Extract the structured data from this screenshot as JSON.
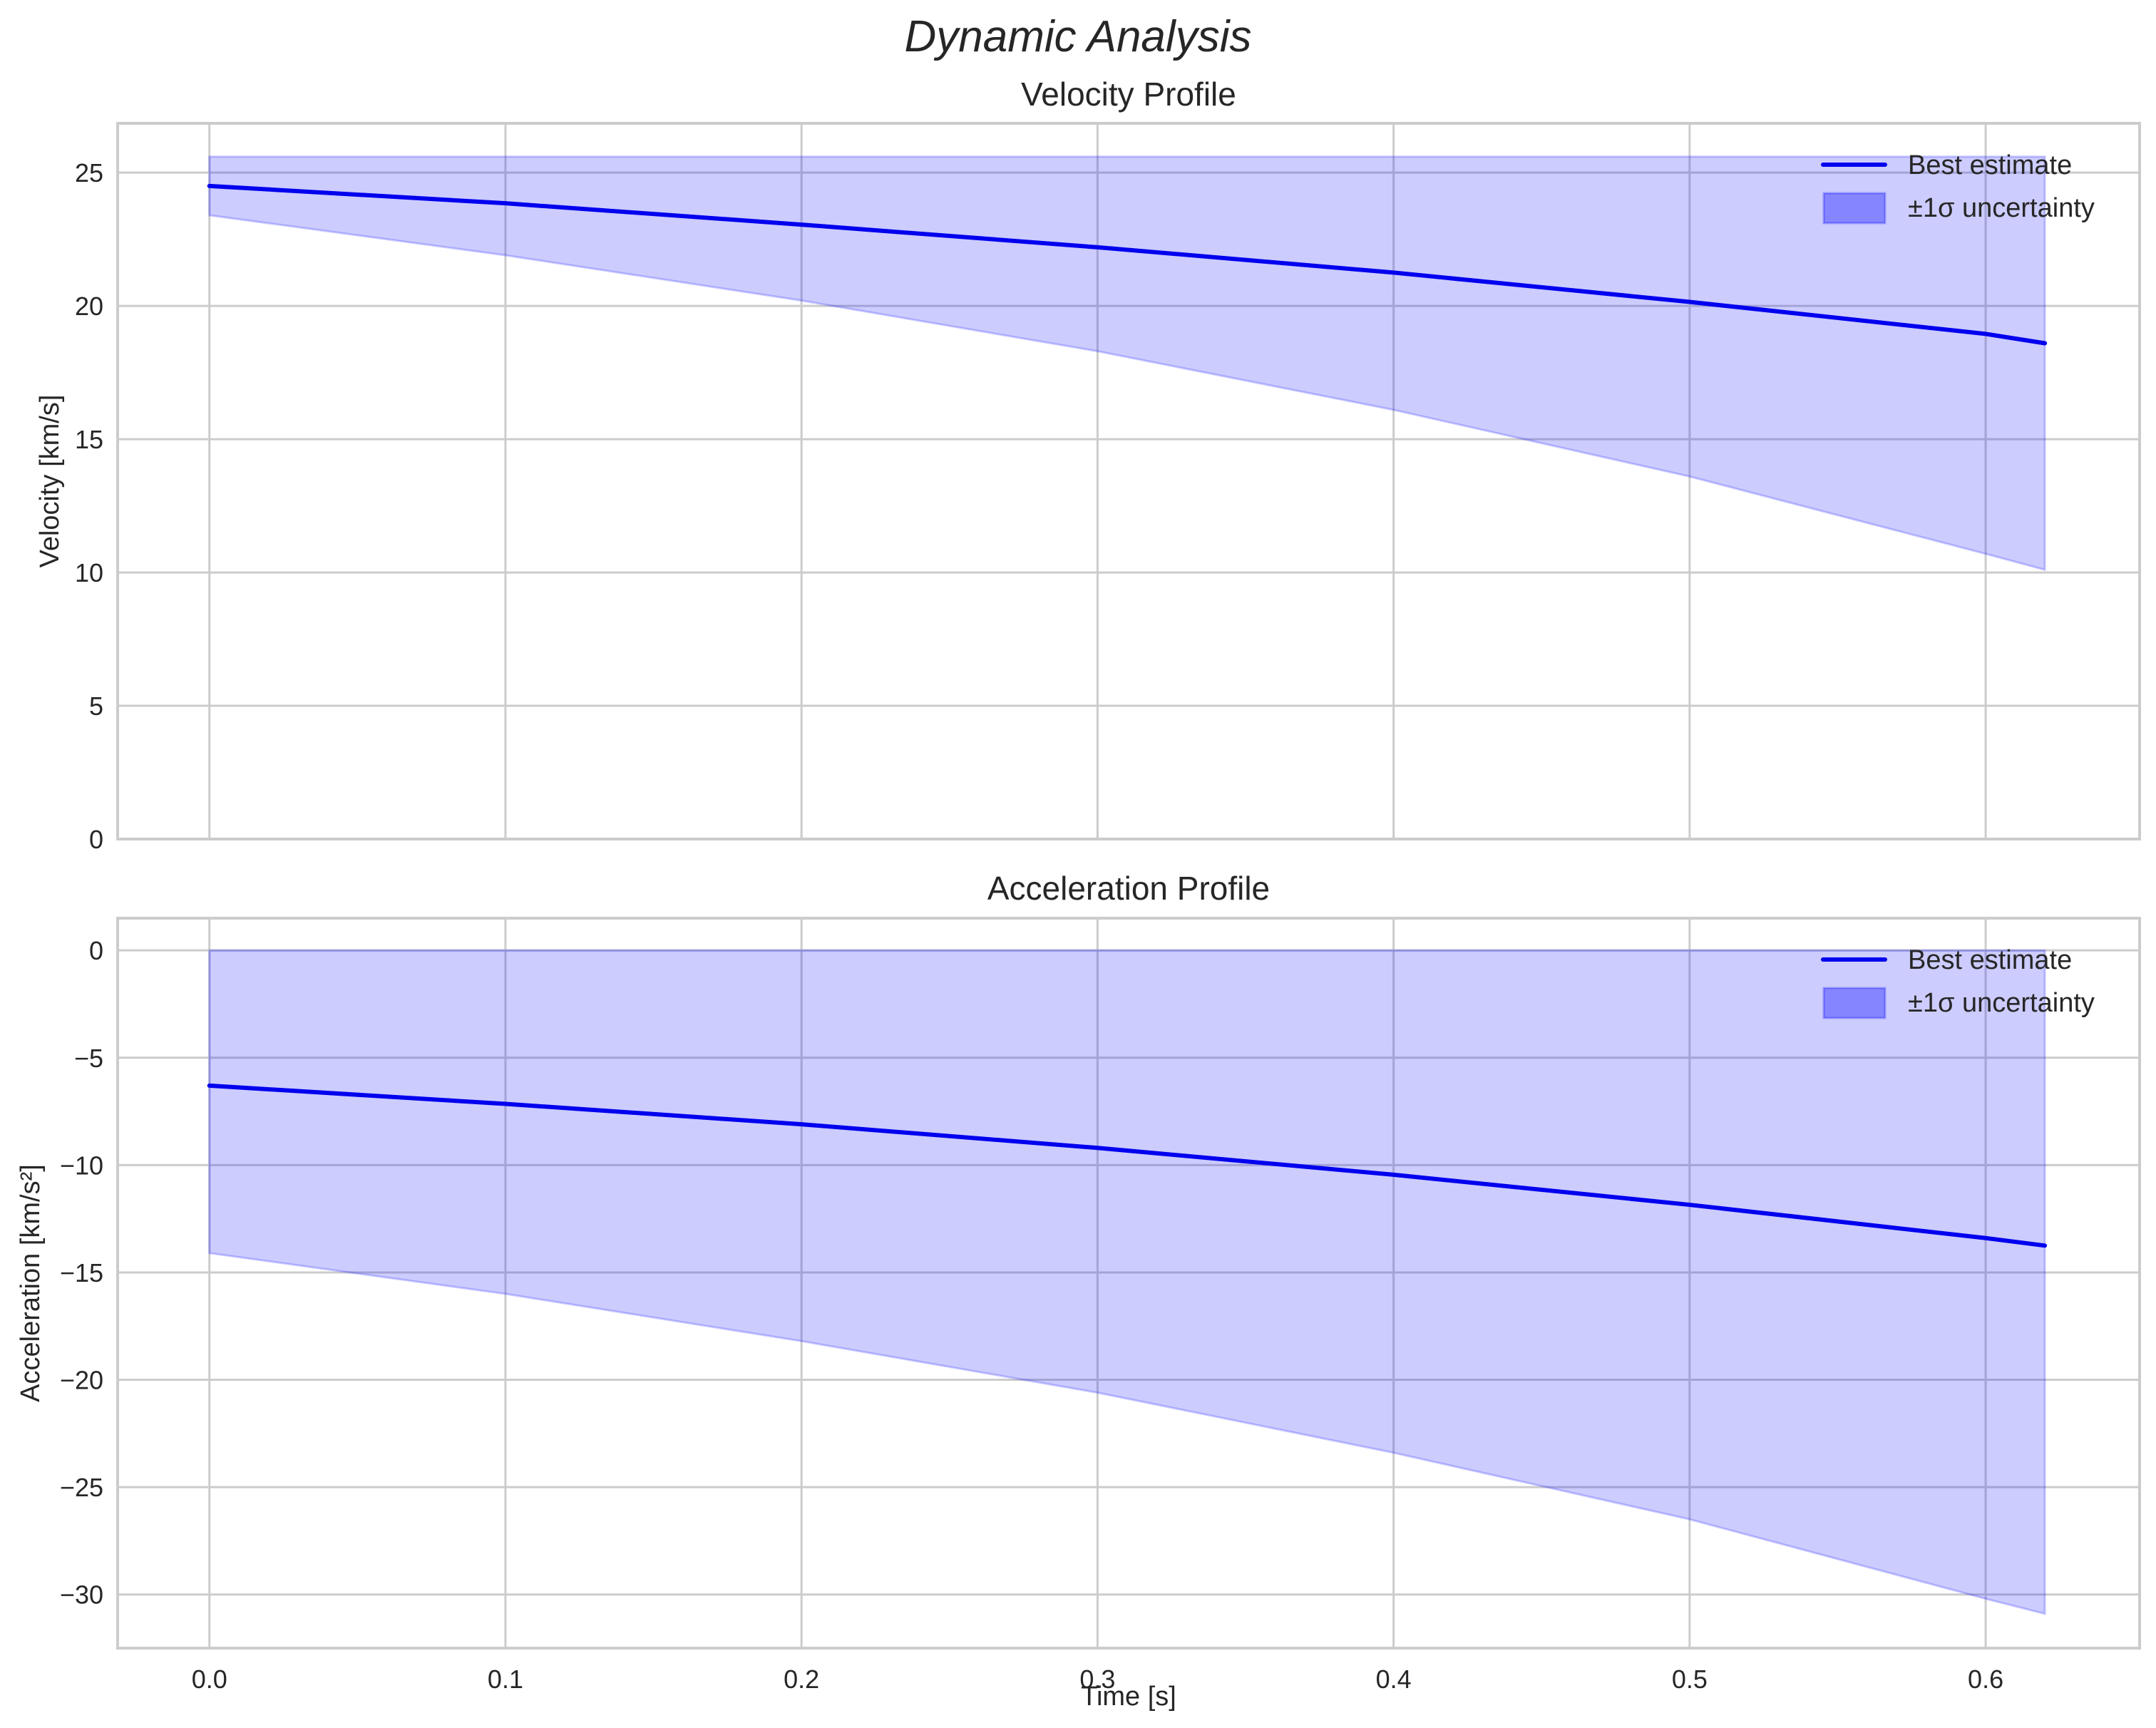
{
  "figure": {
    "suptitle": "Dynamic Analysis",
    "xlabel": "Time [s]"
  },
  "colors": {
    "line": "#0000ee",
    "band_fill": "#0000ff",
    "band_alpha": 0.2,
    "grid": "#cccccc",
    "text": "#262626"
  },
  "legend": {
    "line_label": "Best estimate",
    "band_label": "±1σ uncertainty",
    "position": "upper right"
  },
  "chart_data": [
    {
      "type": "line",
      "title": "Velocity Profile",
      "xlabel": "",
      "ylabel": "Velocity [km/s]",
      "xlim": [
        -0.031,
        0.652
      ],
      "ylim": [
        0,
        26.85
      ],
      "xticks": [
        "0.0",
        "0.1",
        "0.2",
        "0.3",
        "0.4",
        "0.5",
        "0.6"
      ],
      "yticks": [
        "0",
        "5",
        "10",
        "15",
        "20",
        "25"
      ],
      "ytick_values": [
        0,
        5,
        10,
        15,
        20,
        25
      ],
      "grid": true,
      "legend": [
        "Best estimate",
        "±1σ uncertainty"
      ],
      "x": [
        0.0,
        0.1,
        0.2,
        0.3,
        0.4,
        0.5,
        0.6,
        0.62
      ],
      "series": [
        {
          "name": "Best estimate",
          "kind": "line",
          "values": [
            24.5,
            23.85,
            23.05,
            22.2,
            21.25,
            20.15,
            18.95,
            18.6
          ]
        },
        {
          "name": "±1σ uncertainty (upper)",
          "kind": "band_upper",
          "values": [
            25.6,
            25.6,
            25.6,
            25.6,
            25.6,
            25.6,
            25.6,
            25.6
          ]
        },
        {
          "name": "±1σ uncertainty (lower)",
          "kind": "band_lower",
          "values": [
            23.4,
            21.9,
            20.2,
            18.3,
            16.1,
            13.6,
            10.7,
            10.1
          ]
        }
      ]
    },
    {
      "type": "line",
      "title": "Acceleration Profile",
      "xlabel": "Time [s]",
      "ylabel": "Acceleration [km/s²]",
      "xlim": [
        -0.031,
        0.652
      ],
      "ylim": [
        -32.5,
        1.5
      ],
      "xticks": [
        "0.0",
        "0.1",
        "0.2",
        "0.3",
        "0.4",
        "0.5",
        "0.6"
      ],
      "yticks": [
        "0",
        "−5",
        "−10",
        "−15",
        "−20",
        "−25",
        "−30"
      ],
      "ytick_values": [
        0,
        -5,
        -10,
        -15,
        -20,
        -25,
        -30
      ],
      "grid": true,
      "legend": [
        "Best estimate",
        "±1σ uncertainty"
      ],
      "x": [
        0.0,
        0.1,
        0.2,
        0.3,
        0.4,
        0.5,
        0.6,
        0.62
      ],
      "series": [
        {
          "name": "Best estimate",
          "kind": "line",
          "values": [
            -6.3,
            -7.15,
            -8.1,
            -9.2,
            -10.45,
            -11.85,
            -13.4,
            -13.75
          ]
        },
        {
          "name": "±1σ uncertainty (upper)",
          "kind": "band_upper",
          "values": [
            0,
            0,
            0,
            0,
            0,
            0,
            0,
            0
          ]
        },
        {
          "name": "±1σ uncertainty (lower)",
          "kind": "band_lower",
          "values": [
            -14.1,
            -16.0,
            -18.2,
            -20.6,
            -23.4,
            -26.5,
            -30.2,
            -30.9
          ]
        }
      ]
    }
  ]
}
